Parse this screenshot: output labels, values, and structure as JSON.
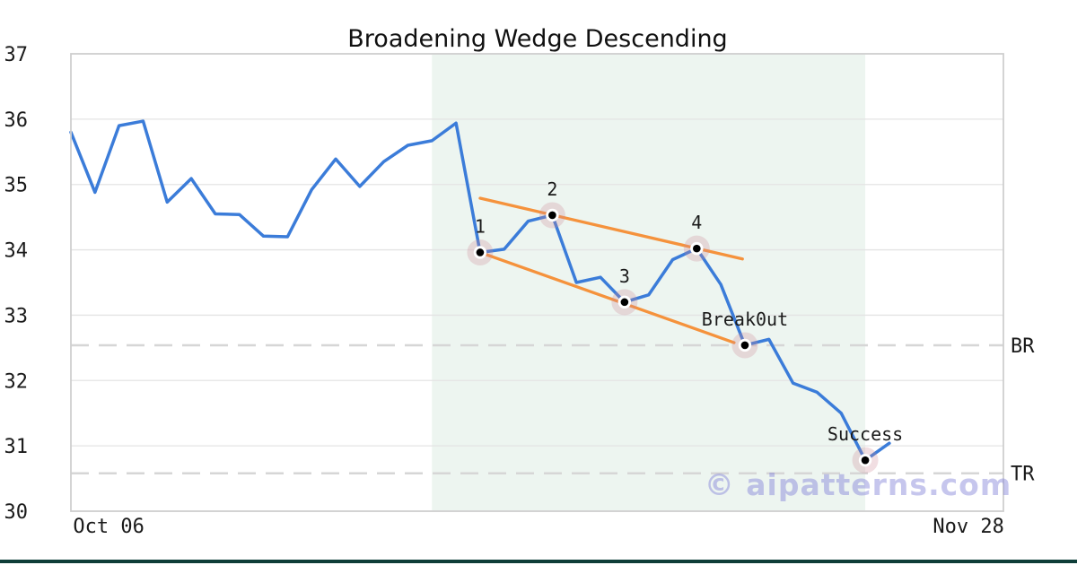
{
  "title": "Broadening Wedge Descending",
  "watermark": "© aipatterns.com",
  "colors": {
    "line": "#3b7cd9",
    "trend": "#f5923c",
    "shade": "#edf5f0",
    "grid": "#e4e4e4",
    "dashed": "#d6d6d6",
    "spine": "#cfcfcf",
    "marker_halo": "rgba(203,138,150,0.28)",
    "marker_ring": "#ffffff",
    "marker_dot": "#000000",
    "watermark": "rgba(128,128,216,0.45)",
    "bottom_bar": "#0e3d38",
    "tick_color": "#1a1a1a",
    "annotation_color": "#111111"
  },
  "chart_data": {
    "type": "line",
    "title": "Broadening Wedge Descending",
    "ylim": [
      30,
      37
    ],
    "yticks": [
      30,
      31,
      32,
      33,
      34,
      35,
      36,
      37
    ],
    "xticks": [
      {
        "label": "Oct 06",
        "index": 1.57
      },
      {
        "label": "Nov 28",
        "index": 37.29
      }
    ],
    "values": [
      35.8,
      34.88,
      35.9,
      35.97,
      34.73,
      35.09,
      34.55,
      34.54,
      34.21,
      34.2,
      34.92,
      35.39,
      34.97,
      35.35,
      35.6,
      35.67,
      35.94,
      33.96,
      34.01,
      34.44,
      34.53,
      33.5,
      33.58,
      33.2,
      33.31,
      33.85,
      34.02,
      33.47,
      32.54,
      32.63,
      31.96,
      31.82,
      31.5,
      30.78,
      31.04
    ],
    "shaded_region_indices": [
      15,
      33
    ],
    "levels": [
      {
        "label": "BR",
        "value": 32.54
      },
      {
        "label": "TR",
        "value": 30.58
      }
    ],
    "trendlines": [
      {
        "name": "upper",
        "points": [
          [
            17.0,
            34.79
          ],
          [
            27.9,
            33.86
          ]
        ]
      },
      {
        "name": "lower",
        "points": [
          [
            17.0,
            33.96
          ],
          [
            27.55,
            32.58
          ]
        ]
      }
    ],
    "annotations": [
      {
        "label": "1",
        "index": 17
      },
      {
        "label": "2",
        "index": 20
      },
      {
        "label": "3",
        "index": 23
      },
      {
        "label": "4",
        "index": 26
      },
      {
        "label": "Break0ut",
        "index": 28
      },
      {
        "label": "Success",
        "index": 33
      }
    ],
    "grid": true,
    "legend": false
  }
}
